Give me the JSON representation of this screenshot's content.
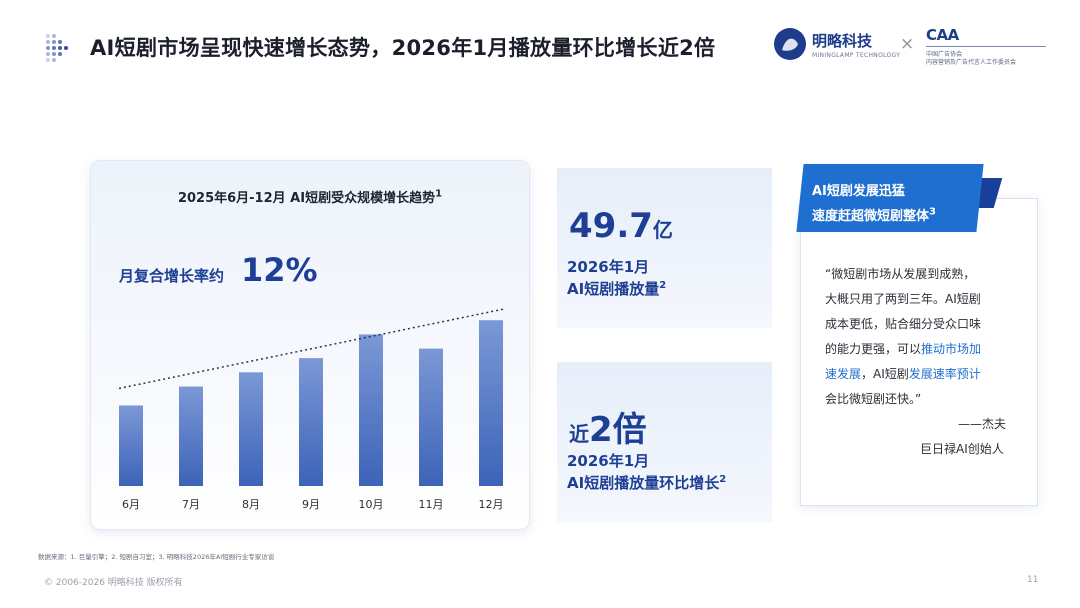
{
  "header": {
    "title": "AI短剧市场呈现快速增长态势，2026年1月播放量环比增长近2倍",
    "brand_name": "明略科技",
    "brand_sub": "MININGLAMP TECHNOLOGY",
    "times": "×",
    "partner_mark": "CAA",
    "partner_line1": "中国广告协会",
    "partner_line2": "内容营销及广告代言人工作委员会",
    "accent_color": "#1e3f93"
  },
  "chart_card": {
    "title": "2025年6月-12月 AI短剧受众规模增长趋势",
    "title_sup": "1",
    "cagr_label": "月复合增长率约",
    "cagr_value": "12%"
  },
  "chart_data": {
    "type": "bar",
    "title": "2025年6月-12月 AI短剧受众规模增长趋势",
    "categories": [
      "6月",
      "7月",
      "8月",
      "9月",
      "10月",
      "11月",
      "12月"
    ],
    "values": [
      85,
      105,
      120,
      135,
      160,
      145,
      175
    ],
    "trendline": "dotted linear",
    "ylim": [
      0,
      190
    ],
    "bar_color_top": "#7b98d6",
    "bar_color_bottom": "#3d63b8"
  },
  "stats": [
    {
      "big": "49.7",
      "unit": "亿",
      "line1": "2026年1月",
      "line2": "AI短剧播放量",
      "sup": "2"
    },
    {
      "prefix": "近",
      "big": "2倍",
      "line1": "2026年1月",
      "line2": "AI短剧播放量环比增长",
      "sup": "2"
    }
  ],
  "quote": {
    "tag_line1": "AI短剧发展迅猛",
    "tag_line2": "速度赶超微短剧整体",
    "tag_sup": "3",
    "lines": [
      "“微短剧市场从发展到成熟，",
      "大概只用了两到三年。AI短剧",
      "成本更低，贴合细分受众口味",
      "的能力更强，可以",
      "推动市场加",
      "速发展",
      "，AI短剧",
      "发展速率预计",
      "会比微短剧还快。”"
    ],
    "author": "——杰夫",
    "role": "巨日禄AI创始人"
  },
  "footer": {
    "source": "数据来源：1. 巨量引擎；2. 短剧自习室；3. 明略科技2026年AI短剧行业专家访谈",
    "copyright": "© 2006-2026 明略科技 版权所有",
    "page": "11"
  }
}
